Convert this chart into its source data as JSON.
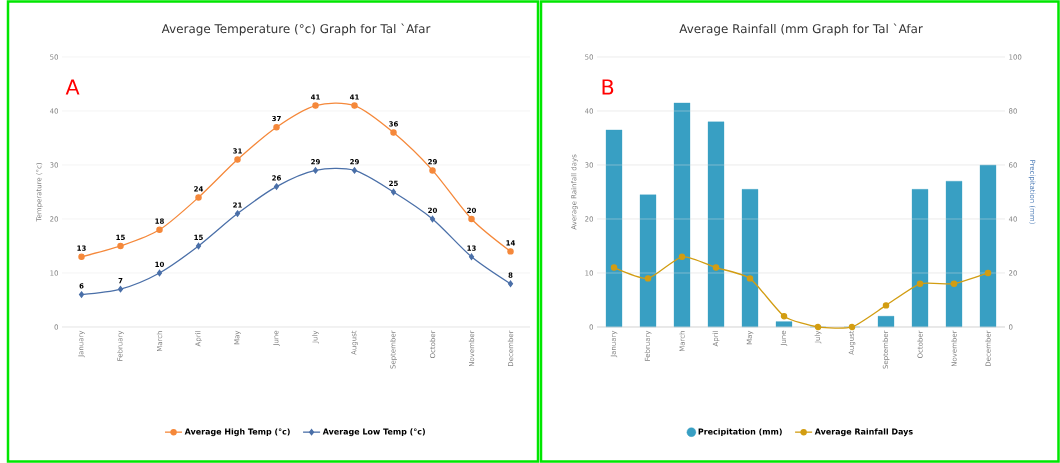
{
  "chart_data": [
    {
      "type": "line",
      "title": "Average Temperature (°c) Graph for Tal `Afar",
      "ylabel": "Temperature (°c)",
      "categories": [
        "January",
        "February",
        "March",
        "April",
        "May",
        "June",
        "July",
        "August",
        "September",
        "October",
        "November",
        "December"
      ],
      "series": [
        {
          "name": "Average High Temp (°c)",
          "color": "#f5883a",
          "marker": "circle",
          "values": [
            13,
            15,
            18,
            24,
            31,
            37,
            41,
            41,
            36,
            29,
            20,
            14
          ]
        },
        {
          "name": "Average Low Temp (°c)",
          "color": "#4a6fa8",
          "marker": "diamond",
          "values": [
            6,
            7,
            10,
            15,
            21,
            26,
            29,
            29,
            25,
            20,
            13,
            8
          ]
        }
      ],
      "ylim": [
        0,
        50
      ],
      "yticks": [
        0,
        10,
        20,
        30,
        40,
        50
      ],
      "grid": "y",
      "legend": "bottom",
      "data_labels": true,
      "annotations": [
        "A"
      ]
    },
    {
      "type": "bar",
      "title": "Average Rainfall (mm Graph for Tal `Afar",
      "ylabel": "Average Rainfall days",
      "y2label": "Precipitation (mm)",
      "categories": [
        "January",
        "February",
        "March",
        "April",
        "May",
        "June",
        "July",
        "August",
        "September",
        "October",
        "November",
        "December"
      ],
      "series": [
        {
          "name": "Precipitation (mm)",
          "color": "#389fc3",
          "axis": "y2",
          "values": [
            73,
            49,
            83,
            76,
            51,
            2,
            0,
            0,
            4,
            51,
            54,
            60
          ]
        },
        {
          "name": "Average Rainfall Days",
          "type": "line",
          "color": "#d29d12",
          "marker": "circle",
          "values": [
            11,
            9,
            13,
            11,
            9,
            2,
            0,
            0,
            4,
            8,
            8,
            10
          ]
        }
      ],
      "ylim": [
        0,
        50
      ],
      "yticks": [
        0,
        10,
        20,
        30,
        40,
        50
      ],
      "y2lim": [
        0,
        100
      ],
      "y2ticks": [
        0,
        20,
        40,
        60,
        80,
        100
      ],
      "grid": "y",
      "legend": "bottom",
      "annotations": [
        "B"
      ]
    }
  ]
}
